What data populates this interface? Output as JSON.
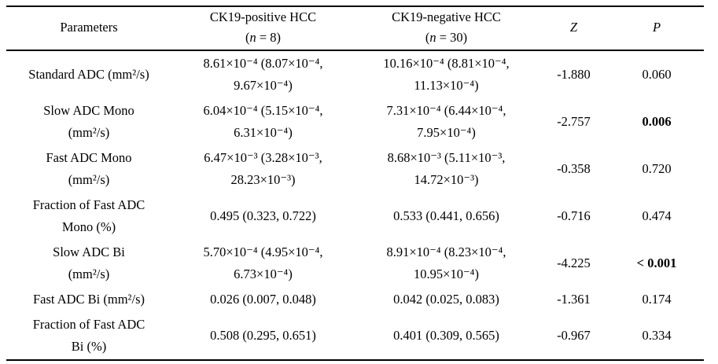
{
  "table": {
    "header": {
      "parameters": "Parameters",
      "group_positive": {
        "line1": "CK19-positive HCC",
        "paren_open": "(",
        "n_symbol": "n",
        "n_rest": " = 8)"
      },
      "group_negative": {
        "line1": "CK19-negative HCC",
        "paren_open": "(",
        "n_symbol": "n",
        "n_rest": " = 30)"
      },
      "z": "Z",
      "p": "P"
    },
    "rows": [
      {
        "param": "Standard ADC (mm²/s)",
        "positive": "8.61×10⁻⁴ (8.07×10⁻⁴,\n9.67×10⁻⁴)",
        "negative": "10.16×10⁻⁴ (8.81×10⁻⁴,\n11.13×10⁻⁴)",
        "z": "-1.880",
        "p": "0.060",
        "p_bold": false
      },
      {
        "param": "Slow ADC Mono\n(mm²/s)",
        "positive": "6.04×10⁻⁴ (5.15×10⁻⁴,\n6.31×10⁻⁴)",
        "negative": "7.31×10⁻⁴ (6.44×10⁻⁴,\n7.95×10⁻⁴)",
        "z": "-2.757",
        "p": "0.006",
        "p_bold": true
      },
      {
        "param": "Fast ADC Mono\n(mm²/s)",
        "positive": "6.47×10⁻³ (3.28×10⁻³,\n28.23×10⁻³)",
        "negative": "8.68×10⁻³ (5.11×10⁻³,\n14.72×10⁻³)",
        "z": "-0.358",
        "p": "0.720",
        "p_bold": false
      },
      {
        "param": "Fraction of Fast ADC\nMono (%)",
        "positive": "0.495 (0.323, 0.722)",
        "negative": "0.533 (0.441, 0.656)",
        "z": "-0.716",
        "p": "0.474",
        "p_bold": false
      },
      {
        "param": "Slow ADC Bi\n(mm²/s)",
        "positive": "5.70×10⁻⁴ (4.95×10⁻⁴,\n6.73×10⁻⁴)",
        "negative": "8.91×10⁻⁴ (8.23×10⁻⁴,\n10.95×10⁻⁴)",
        "z": "-4.225",
        "p": "< 0.001",
        "p_bold": true
      },
      {
        "param": "Fast ADC Bi (mm²/s)",
        "positive": "0.026 (0.007, 0.048)",
        "negative": "0.042 (0.025, 0.083)",
        "z": "-1.361",
        "p": "0.174",
        "p_bold": false
      },
      {
        "param": "Fraction of Fast ADC\nBi (%)",
        "positive": "0.508 (0.295, 0.651)",
        "negative": "0.401 (0.309, 0.565)",
        "z": "-0.967",
        "p": "0.334",
        "p_bold": false
      }
    ]
  }
}
